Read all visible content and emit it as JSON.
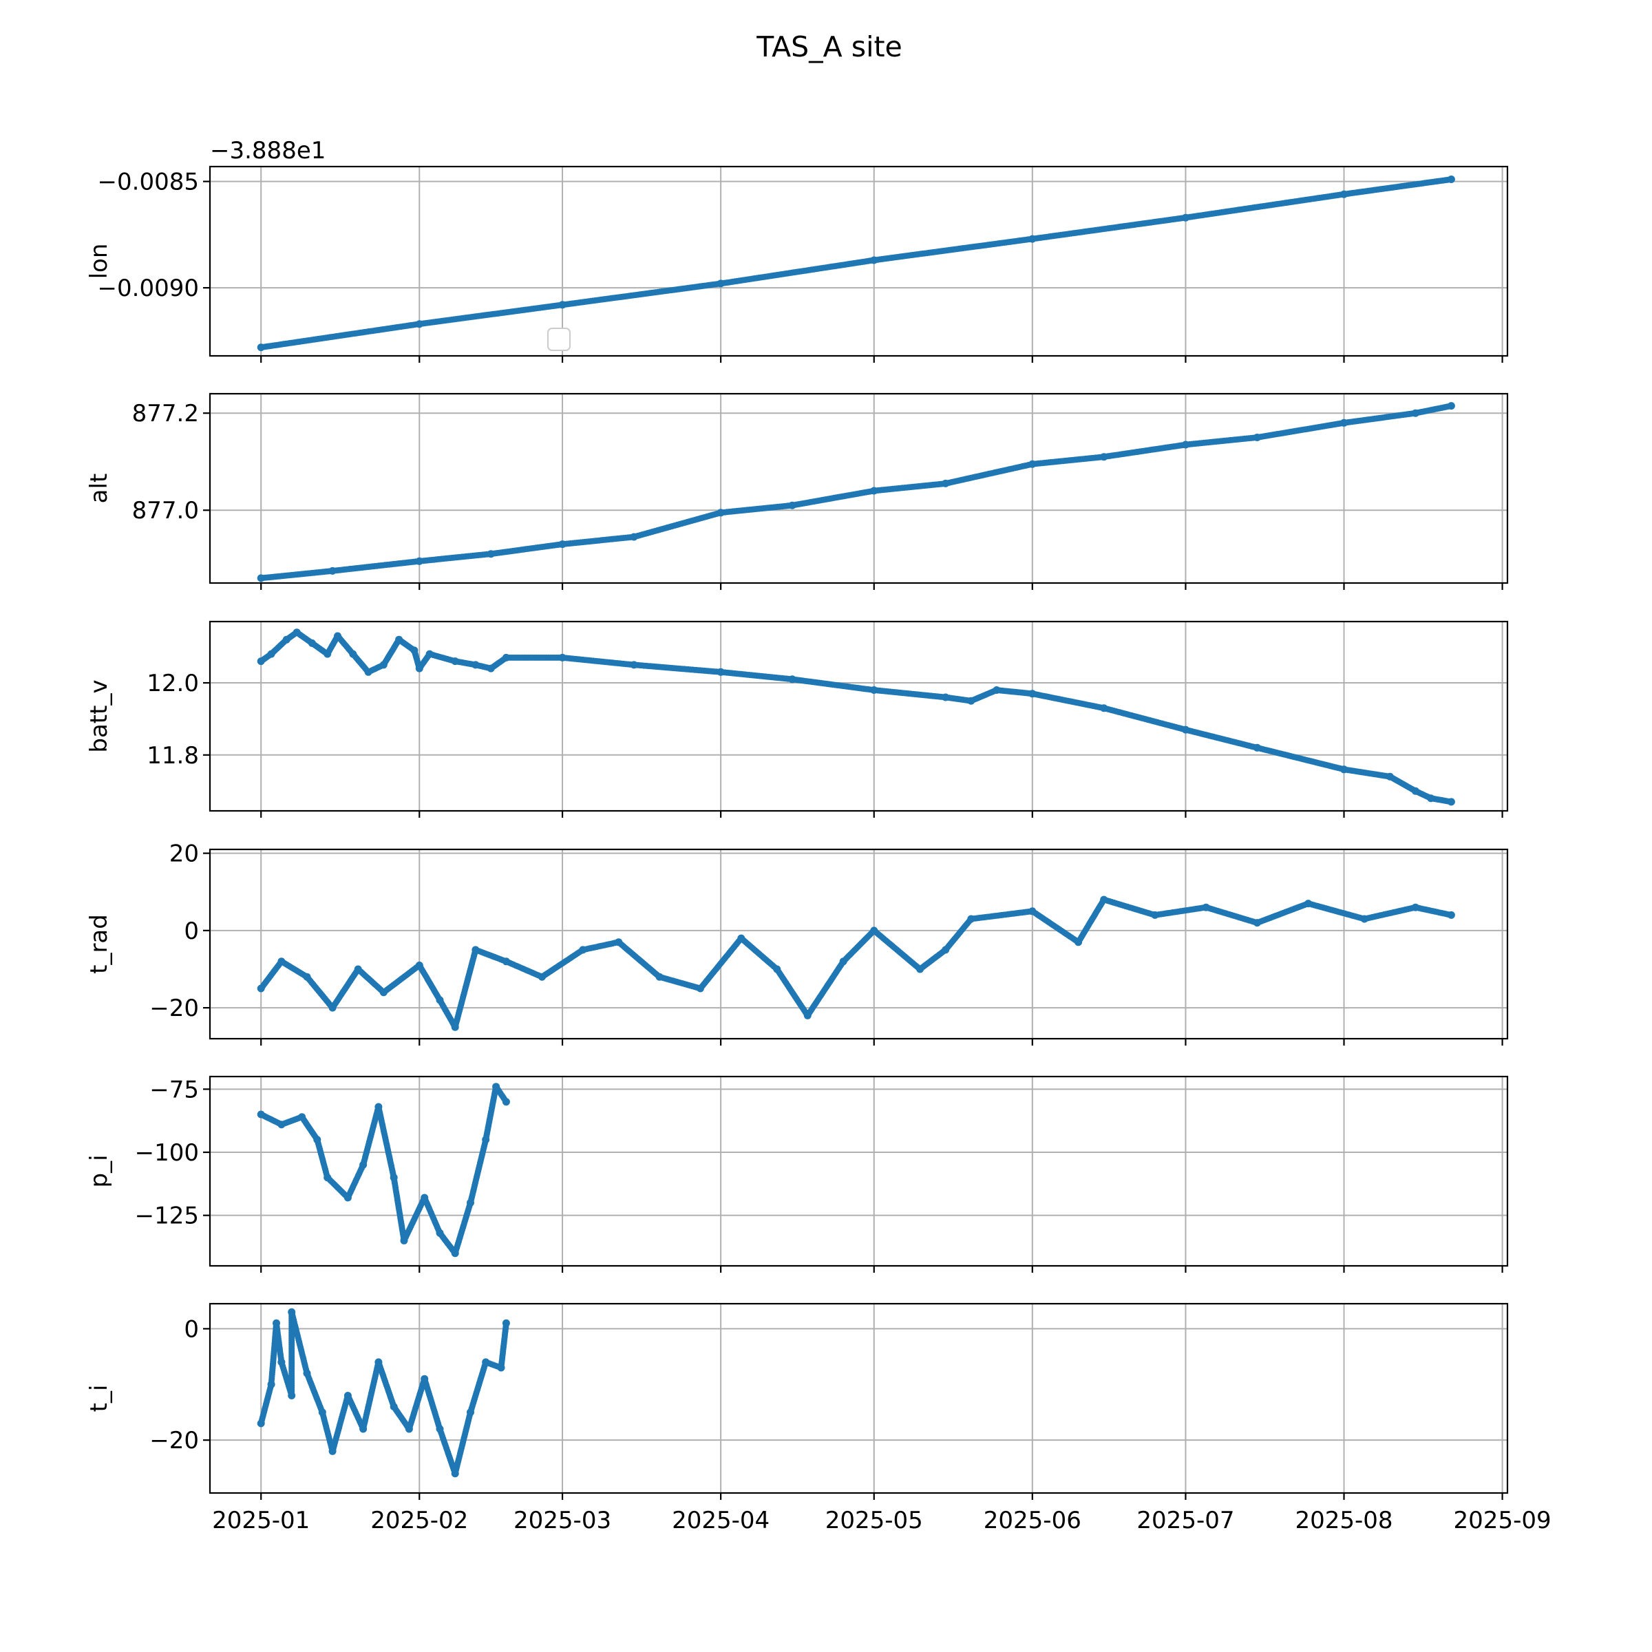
{
  "chart_data": {
    "type": "scatter",
    "title": "TAS_A site",
    "x_axis": {
      "kind": "date",
      "range": [
        "2024-12-22",
        "2025-09-02"
      ],
      "ticks": [
        "2025-01-01",
        "2025-02-01",
        "2025-03-01",
        "2025-04-01",
        "2025-05-01",
        "2025-06-01",
        "2025-07-01",
        "2025-08-01",
        "2025-09-01"
      ],
      "tick_labels": [
        "2025-01",
        "2025-02",
        "2025-03",
        "2025-04",
        "2025-05",
        "2025-06",
        "2025-07",
        "2025-08",
        "2025-09"
      ]
    },
    "grid": true,
    "marker_color": "#1f77b4",
    "panels": [
      {
        "ylabel": "lon",
        "offset_text": "−3.888e1",
        "ylim": [
          -0.00932,
          -0.00843
        ],
        "yticks": [
          -0.0085,
          -0.009
        ],
        "ytick_labels": [
          "−0.0085",
          "−0.0090"
        ],
        "has_legend": true,
        "points": [
          [
            "2025-01-01",
            -0.00928
          ],
          [
            "2025-02-01",
            -0.00917
          ],
          [
            "2025-03-01",
            -0.00908
          ],
          [
            "2025-04-01",
            -0.00898
          ],
          [
            "2025-05-01",
            -0.00887
          ],
          [
            "2025-06-01",
            -0.00877
          ],
          [
            "2025-07-01",
            -0.00867
          ],
          [
            "2025-08-01",
            -0.00856
          ],
          [
            "2025-08-22",
            -0.00849
          ]
        ]
      },
      {
        "ylabel": "alt",
        "ylim": [
          876.85,
          877.24
        ],
        "yticks": [
          877.0,
          877.2
        ],
        "ytick_labels": [
          "877.0",
          "877.2"
        ],
        "points": [
          [
            "2025-01-01",
            876.86
          ],
          [
            "2025-01-15",
            876.875
          ],
          [
            "2025-02-01",
            876.895
          ],
          [
            "2025-02-15",
            876.91
          ],
          [
            "2025-03-01",
            876.93
          ],
          [
            "2025-03-15",
            876.945
          ],
          [
            "2025-04-01",
            876.995
          ],
          [
            "2025-04-15",
            877.01
          ],
          [
            "2025-05-01",
            877.04
          ],
          [
            "2025-05-15",
            877.055
          ],
          [
            "2025-06-01",
            877.095
          ],
          [
            "2025-06-15",
            877.11
          ],
          [
            "2025-07-01",
            877.135
          ],
          [
            "2025-07-15",
            877.15
          ],
          [
            "2025-08-01",
            877.18
          ],
          [
            "2025-08-15",
            877.2
          ],
          [
            "2025-08-22",
            877.215
          ]
        ]
      },
      {
        "ylabel": "batt_v",
        "ylim": [
          11.645,
          12.17
        ],
        "yticks": [
          11.8,
          12.0
        ],
        "ytick_labels": [
          "11.8",
          "12.0"
        ],
        "points": [
          [
            "2025-01-01",
            12.06
          ],
          [
            "2025-01-03",
            12.08
          ],
          [
            "2025-01-06",
            12.12
          ],
          [
            "2025-01-08",
            12.14
          ],
          [
            "2025-01-11",
            12.11
          ],
          [
            "2025-01-14",
            12.08
          ],
          [
            "2025-01-16",
            12.13
          ],
          [
            "2025-01-19",
            12.08
          ],
          [
            "2025-01-22",
            12.03
          ],
          [
            "2025-01-25",
            12.05
          ],
          [
            "2025-01-28",
            12.12
          ],
          [
            "2025-01-31",
            12.09
          ],
          [
            "2025-02-01",
            12.04
          ],
          [
            "2025-02-03",
            12.08
          ],
          [
            "2025-02-08",
            12.06
          ],
          [
            "2025-02-12",
            12.05
          ],
          [
            "2025-02-15",
            12.04
          ],
          [
            "2025-02-18",
            12.07
          ],
          [
            "2025-03-01",
            12.07
          ],
          [
            "2025-03-15",
            12.05
          ],
          [
            "2025-04-01",
            12.03
          ],
          [
            "2025-04-15",
            12.01
          ],
          [
            "2025-05-01",
            11.98
          ],
          [
            "2025-05-15",
            11.96
          ],
          [
            "2025-05-20",
            11.95
          ],
          [
            "2025-05-25",
            11.98
          ],
          [
            "2025-06-01",
            11.97
          ],
          [
            "2025-06-15",
            11.93
          ],
          [
            "2025-07-01",
            11.87
          ],
          [
            "2025-07-15",
            11.82
          ],
          [
            "2025-08-01",
            11.76
          ],
          [
            "2025-08-10",
            11.74
          ],
          [
            "2025-08-15",
            11.7
          ],
          [
            "2025-08-18",
            11.68
          ],
          [
            "2025-08-22",
            11.67
          ]
        ]
      },
      {
        "ylabel": "t_rad",
        "ylim": [
          -28,
          21
        ],
        "yticks": [
          -20,
          0,
          20
        ],
        "ytick_labels": [
          "−20",
          "0",
          "20"
        ],
        "points": [
          [
            "2025-01-01",
            -15
          ],
          [
            "2025-01-05",
            -8
          ],
          [
            "2025-01-10",
            -12
          ],
          [
            "2025-01-15",
            -20
          ],
          [
            "2025-01-20",
            -10
          ],
          [
            "2025-01-25",
            -16
          ],
          [
            "2025-02-01",
            -9
          ],
          [
            "2025-02-05",
            -18
          ],
          [
            "2025-02-08",
            -25
          ],
          [
            "2025-02-12",
            -5
          ],
          [
            "2025-02-18",
            -8
          ],
          [
            "2025-02-25",
            -12
          ],
          [
            "2025-03-05",
            -5
          ],
          [
            "2025-03-12",
            -3
          ],
          [
            "2025-03-20",
            -12
          ],
          [
            "2025-03-28",
            -15
          ],
          [
            "2025-04-05",
            -2
          ],
          [
            "2025-04-12",
            -10
          ],
          [
            "2025-04-18",
            -22
          ],
          [
            "2025-04-25",
            -8
          ],
          [
            "2025-05-01",
            0
          ],
          [
            "2025-05-10",
            -10
          ],
          [
            "2025-05-15",
            -5
          ],
          [
            "2025-05-20",
            3
          ],
          [
            "2025-06-01",
            5
          ],
          [
            "2025-06-10",
            -3
          ],
          [
            "2025-06-15",
            8
          ],
          [
            "2025-06-25",
            4
          ],
          [
            "2025-07-05",
            6
          ],
          [
            "2025-07-15",
            2
          ],
          [
            "2025-07-25",
            7
          ],
          [
            "2025-08-05",
            3
          ],
          [
            "2025-08-15",
            6
          ],
          [
            "2025-08-22",
            4
          ]
        ]
      },
      {
        "ylabel": "p_i",
        "ylim": [
          -145,
          -70
        ],
        "yticks": [
          -75,
          -100,
          -125
        ],
        "ytick_labels": [
          "−75",
          "−100",
          "−125"
        ],
        "points": [
          [
            "2025-01-01",
            -85
          ],
          [
            "2025-01-05",
            -89
          ],
          [
            "2025-01-09",
            -86
          ],
          [
            "2025-01-12",
            -95
          ],
          [
            "2025-01-14",
            -110
          ],
          [
            "2025-01-18",
            -118
          ],
          [
            "2025-01-21",
            -105
          ],
          [
            "2025-01-24",
            -82
          ],
          [
            "2025-01-27",
            -110
          ],
          [
            "2025-01-29",
            -135
          ],
          [
            "2025-02-02",
            -118
          ],
          [
            "2025-02-05",
            -132
          ],
          [
            "2025-02-08",
            -140
          ],
          [
            "2025-02-11",
            -120
          ],
          [
            "2025-02-14",
            -95
          ],
          [
            "2025-02-16",
            -74
          ],
          [
            "2025-02-18",
            -80
          ]
        ]
      },
      {
        "ylabel": "t_i",
        "ylim": [
          -29.5,
          4.5
        ],
        "yticks": [
          0,
          -20
        ],
        "ytick_labels": [
          "0",
          "−20"
        ],
        "points": [
          [
            "2025-01-01",
            -17
          ],
          [
            "2025-01-03",
            -10
          ],
          [
            "2025-01-05",
            -6
          ],
          [
            "2025-01-07",
            -12
          ],
          [
            "2025-01-10",
            -8
          ],
          [
            "2025-01-13",
            -15
          ],
          [
            "2025-01-15",
            -22
          ],
          [
            "2025-01-18",
            -12
          ],
          [
            "2025-01-21",
            -18
          ],
          [
            "2025-01-24",
            -6
          ],
          [
            "2025-01-27",
            -14
          ],
          [
            "2025-01-30",
            -18
          ],
          [
            "2025-02-02",
            -9
          ],
          [
            "2025-02-05",
            -18
          ],
          [
            "2025-02-08",
            -26
          ],
          [
            "2025-02-11",
            -15
          ],
          [
            "2025-02-14",
            -6
          ],
          [
            "2025-02-17",
            -7
          ],
          [
            "2025-01-04",
            1
          ],
          [
            "2025-01-07",
            3
          ],
          [
            "2025-02-18",
            1
          ]
        ]
      }
    ]
  }
}
